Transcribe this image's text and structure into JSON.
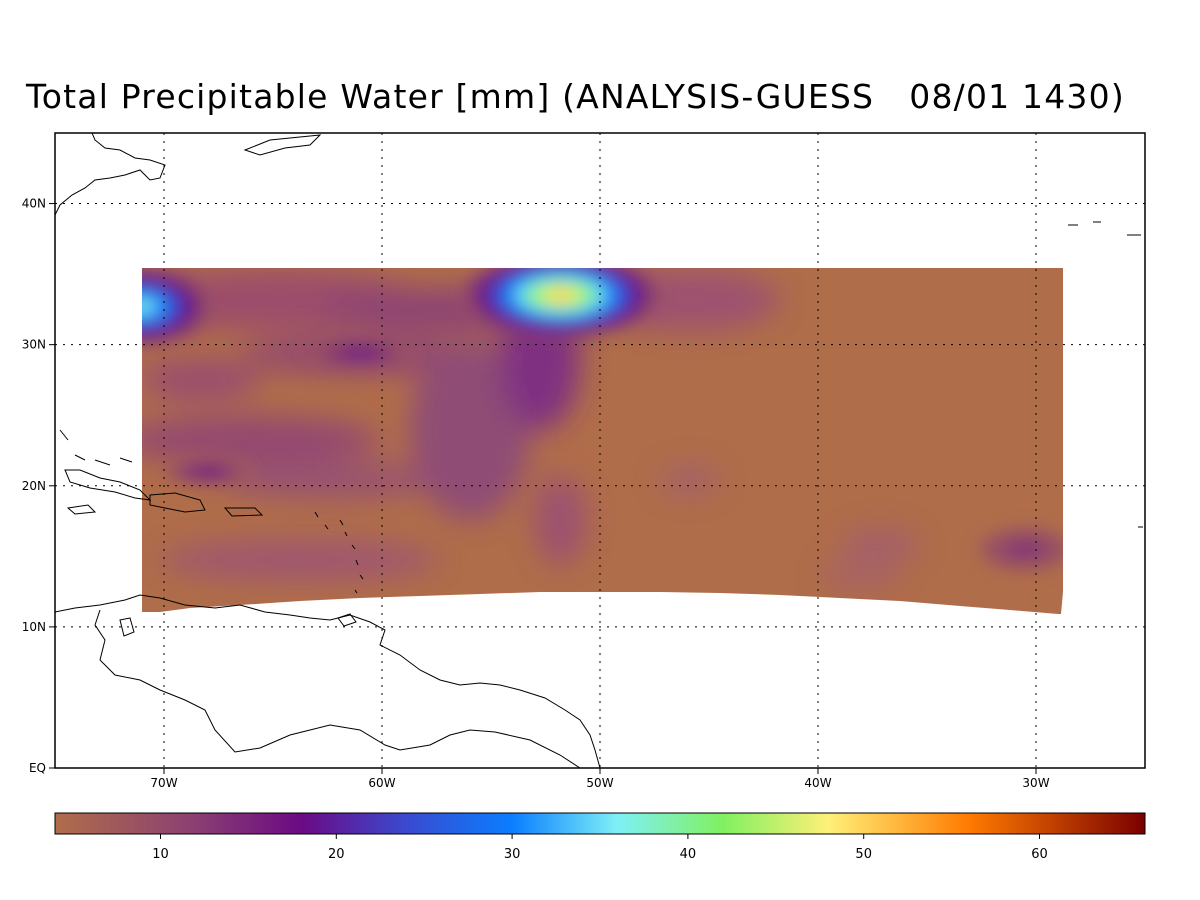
{
  "title": "Total Precipitable Water [mm] (ANALYSIS-GUESS   08/01 1430)",
  "map": {
    "lon_range": [
      -75,
      -25
    ],
    "lat_range": [
      0,
      45
    ],
    "lon_ticks": [
      {
        "value": -70,
        "label": "70W"
      },
      {
        "value": -60,
        "label": "60W"
      },
      {
        "value": -50,
        "label": "50W"
      },
      {
        "value": -40,
        "label": "40W"
      },
      {
        "value": -30,
        "label": "30W"
      }
    ],
    "lat_ticks": [
      {
        "value": 0,
        "label": "EQ"
      },
      {
        "value": 10,
        "label": "10N"
      },
      {
        "value": 20,
        "label": "20N"
      },
      {
        "value": 30,
        "label": "30N"
      },
      {
        "value": 40,
        "label": "40N"
      }
    ],
    "gridlines": "dotted",
    "background_color": "#b06d4a"
  },
  "colorbar": {
    "range": [
      4,
      66
    ],
    "placement": "bottom",
    "ticks": [
      {
        "value": 10,
        "label": "10"
      },
      {
        "value": 20,
        "label": "20"
      },
      {
        "value": 30,
        "label": "30"
      },
      {
        "value": 40,
        "label": "40"
      },
      {
        "value": 50,
        "label": "50"
      },
      {
        "value": 60,
        "label": "60"
      }
    ],
    "stops": [
      {
        "value": 4,
        "color": "#b06d4a"
      },
      {
        "value": 12,
        "color": "#8a3f72"
      },
      {
        "value": 18,
        "color": "#6b0a84"
      },
      {
        "value": 24,
        "color": "#3a4ad0"
      },
      {
        "value": 30,
        "color": "#0a7eff"
      },
      {
        "value": 36,
        "color": "#7ff0f6"
      },
      {
        "value": 42,
        "color": "#80f060"
      },
      {
        "value": 48,
        "color": "#fff078"
      },
      {
        "value": 56,
        "color": "#ff7a00"
      },
      {
        "value": 66,
        "color": "#7a0000"
      }
    ]
  },
  "features": [
    {
      "name": "feature-nw-corner",
      "lon": -71,
      "lat": 32.7,
      "value": 38,
      "rx": 3.2,
      "ry": 2.8
    },
    {
      "name": "feature-north-central",
      "lon": -51.8,
      "lat": 33.5,
      "value": 52,
      "rx": 4.5,
      "ry": 3.0
    },
    {
      "name": "feature-central-band",
      "lon": -61,
      "lat": 29.4,
      "value": 20,
      "rx": 2.5,
      "ry": 0.9
    },
    {
      "name": "feature-west-band",
      "lon": -68,
      "lat": 21,
      "value": 19,
      "rx": 2.0,
      "ry": 0.9
    },
    {
      "name": "feature-east-spot",
      "lon": -30.5,
      "lat": 15.5,
      "value": 14,
      "rx": 2.2,
      "ry": 1.6
    }
  ]
}
